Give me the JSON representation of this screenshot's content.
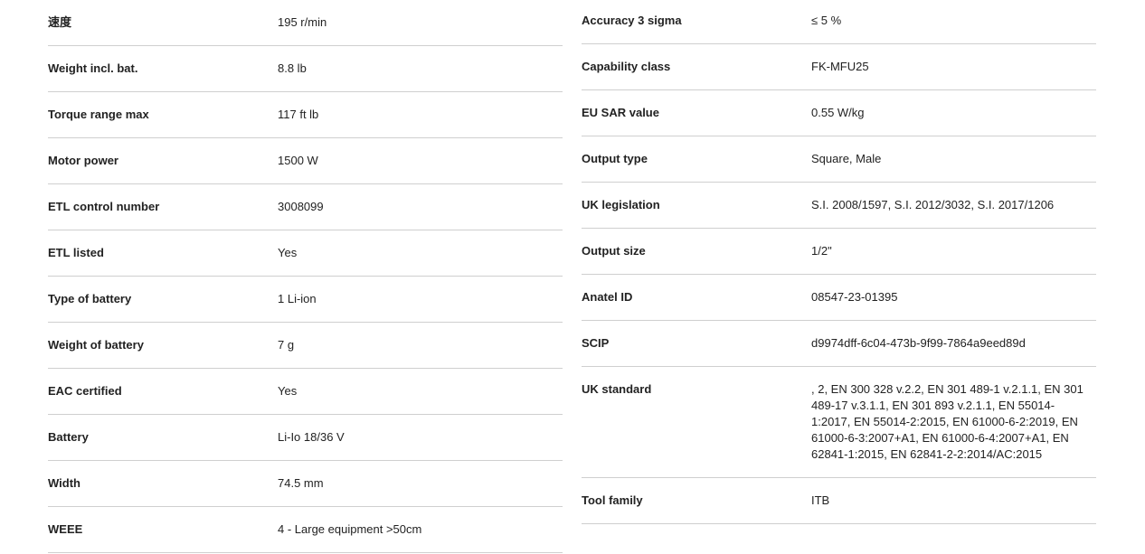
{
  "left_specs": [
    {
      "label": "速度",
      "value": "195 r/min"
    },
    {
      "label": "Weight incl. bat.",
      "value": "8.8 lb"
    },
    {
      "label": "Torque range max",
      "value": "117 ft lb"
    },
    {
      "label": "Motor power",
      "value": "1500 W"
    },
    {
      "label": "ETL control number",
      "value": "3008099"
    },
    {
      "label": "ETL listed",
      "value": "Yes"
    },
    {
      "label": "Type of battery",
      "value": "1 Li-ion"
    },
    {
      "label": "Weight of battery",
      "value": "7 g"
    },
    {
      "label": "EAC certified",
      "value": "Yes"
    },
    {
      "label": "Battery",
      "value": "Li-Io 18/36 V"
    },
    {
      "label": "Width",
      "value": "74.5 mm"
    },
    {
      "label": "WEEE",
      "value": "4 - Large equipment >50cm"
    }
  ],
  "right_specs": [
    {
      "label": "Accuracy 3 sigma",
      "value": "≤ 5 %"
    },
    {
      "label": "Capability class",
      "value": "FK-MFU25"
    },
    {
      "label": "EU SAR value",
      "value": "0.55 W/kg"
    },
    {
      "label": "Output type",
      "value": "Square, Male"
    },
    {
      "label": "UK legislation",
      "value": "S.I. 2008/1597, S.I. 2012/3032, S.I. 2017/1206"
    },
    {
      "label": "Output size",
      "value": "1/2\""
    },
    {
      "label": "Anatel ID",
      "value": "08547-23-01395"
    },
    {
      "label": "SCIP",
      "value": "d9974dff-6c04-473b-9f99-7864a9eed89d"
    },
    {
      "label": "UK standard",
      "value": ", 2, EN 300 328 v.2.2, EN 301 489-1 v.2.1.1, EN 301 489-17 v.3.1.1, EN 301 893 v.2.1.1, EN 55014-1:2017, EN 55014-2:2015, EN 61000-6-2:2019, EN 61000-6-3:2007+A1, EN 61000-6-4:2007+A1, EN 62841-1:2015, EN 62841-2-2:2014/AC:2015"
    },
    {
      "label": "Tool family",
      "value": "ITB"
    }
  ]
}
